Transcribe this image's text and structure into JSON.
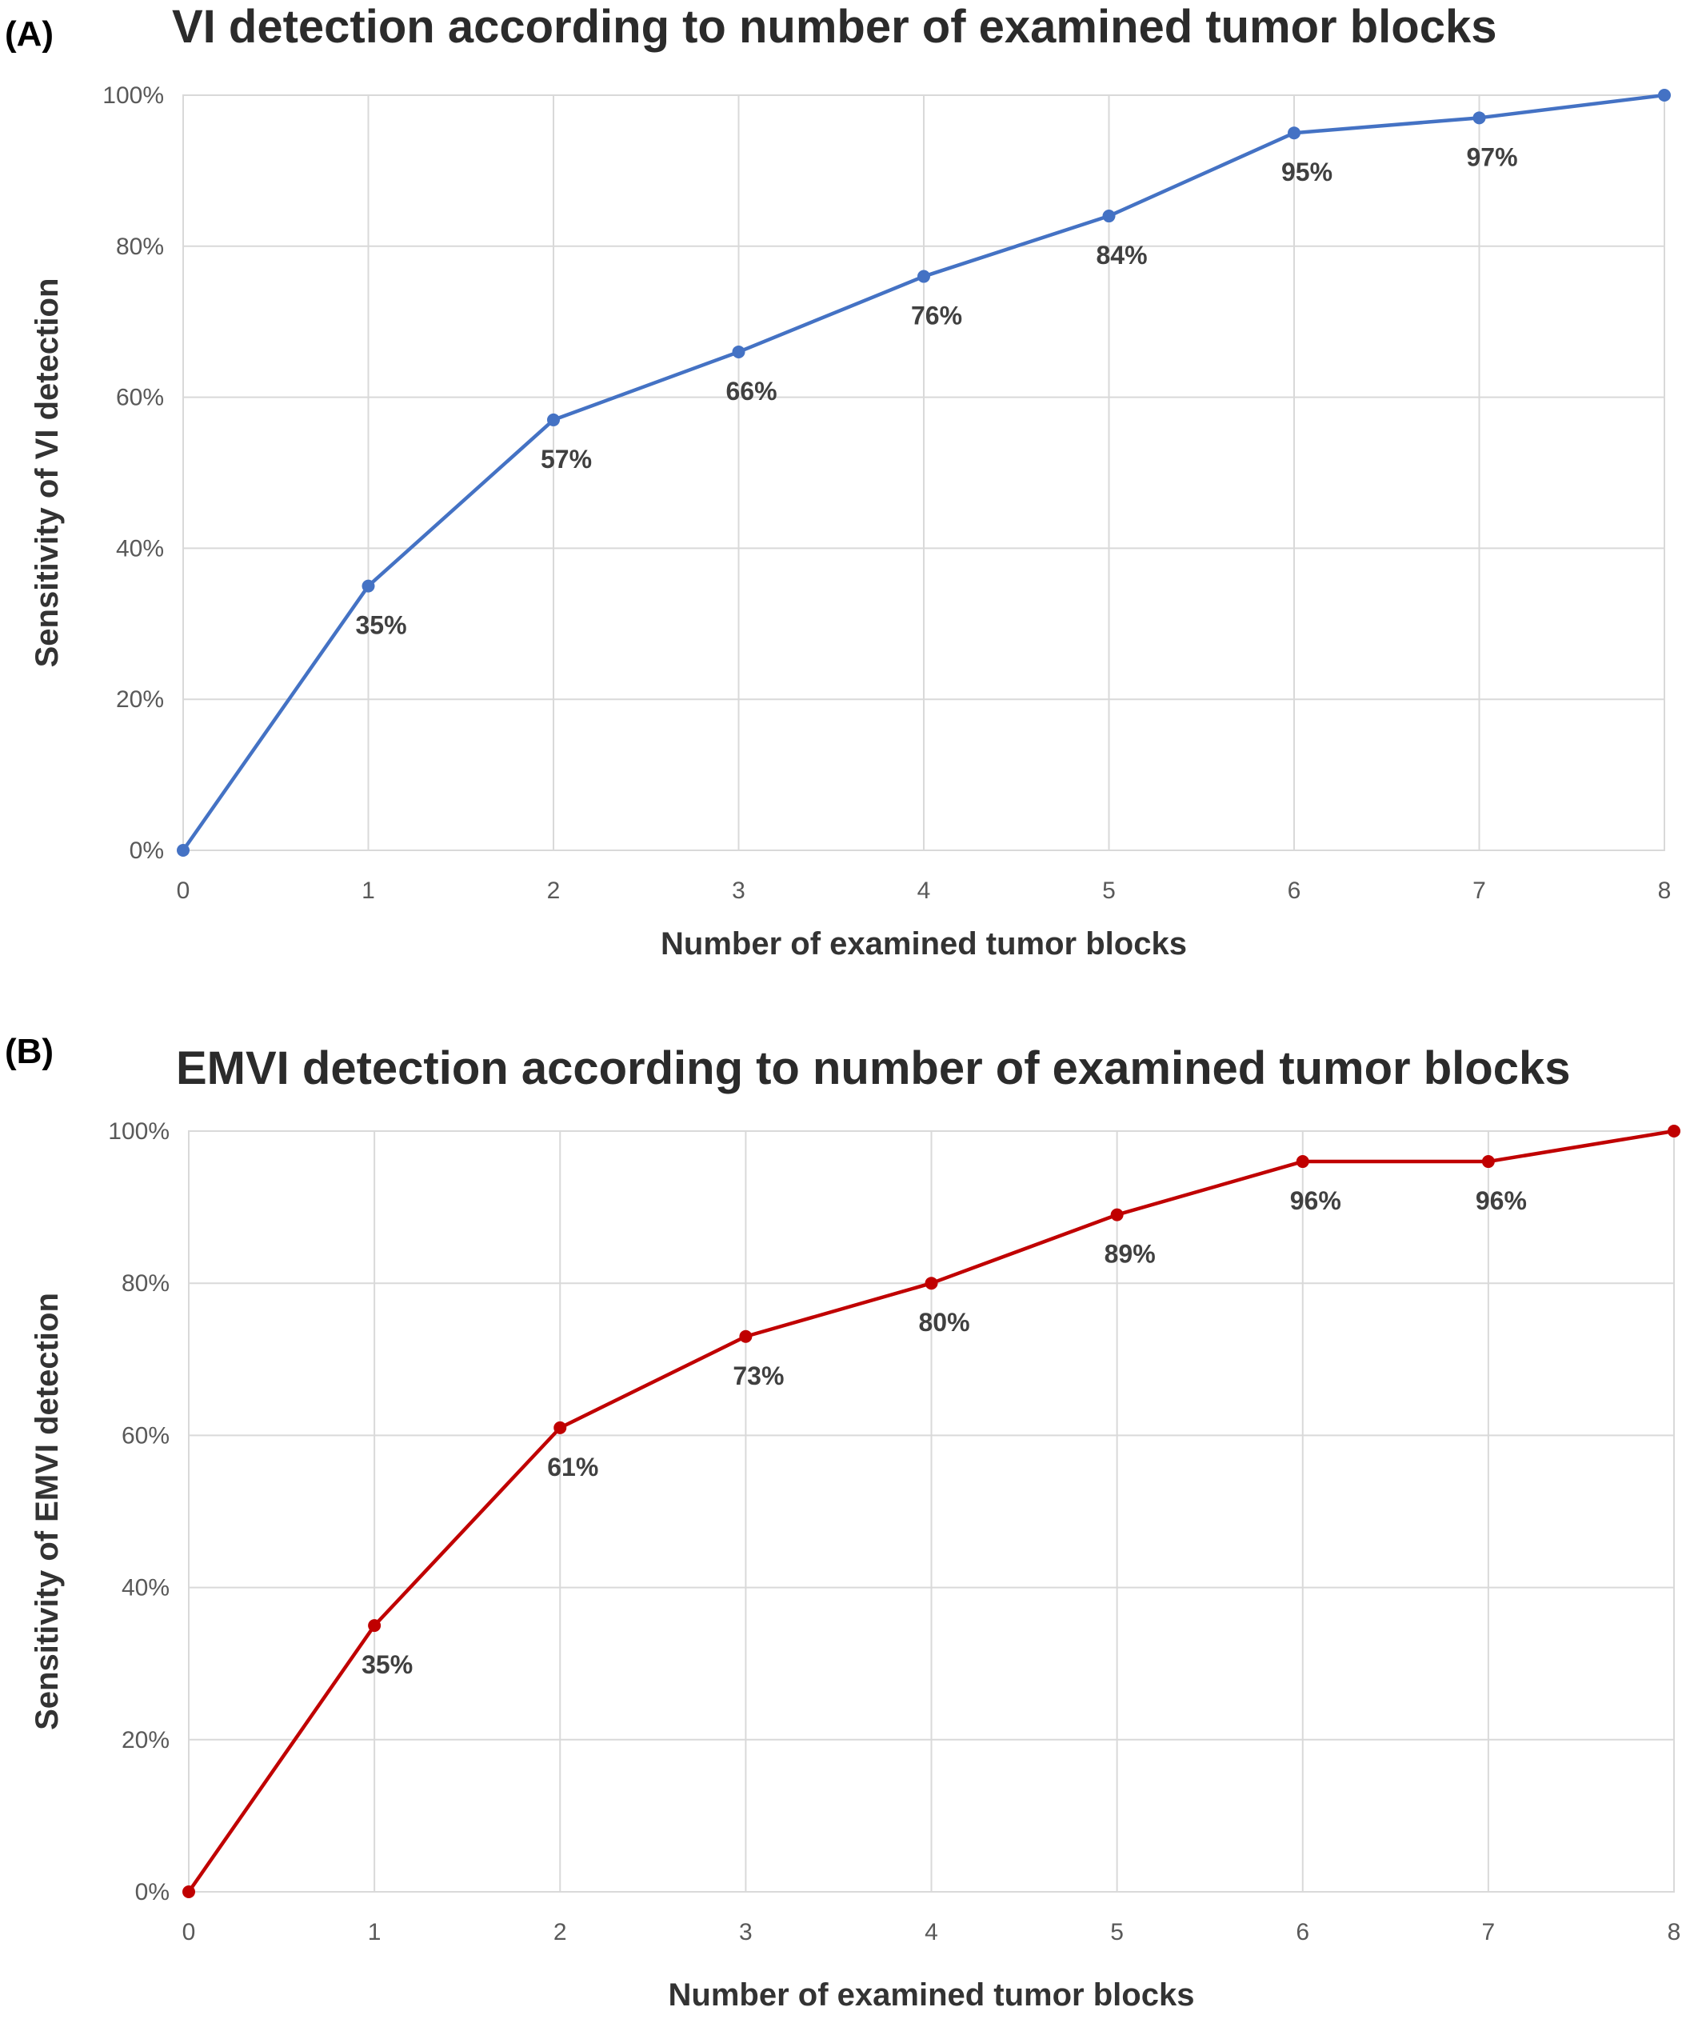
{
  "panels": [
    {
      "letter": "(A)",
      "title": "VI detection according to number of examined tumor blocks"
    },
    {
      "letter": "(B)",
      "title": "EMVI detection according to number of examined tumor blocks"
    }
  ],
  "chart_data": [
    {
      "type": "line",
      "title": "VI detection according to number of examined tumor blocks",
      "xlabel": "Number of examined tumor blocks",
      "ylabel": "Sensitivity of VI detection",
      "x": [
        0,
        1,
        2,
        3,
        4,
        5,
        6,
        7,
        8
      ],
      "xlim": [
        0,
        8
      ],
      "ylim": [
        0,
        100
      ],
      "yticks": [
        "0%",
        "20%",
        "40%",
        "60%",
        "80%",
        "100%"
      ],
      "grid": true,
      "series": [
        {
          "values": [
            0,
            35,
            57,
            66,
            76,
            84,
            95,
            97,
            100
          ],
          "data_labels": [
            "",
            "35%",
            "57%",
            "66%",
            "76%",
            "84%",
            "95%",
            "97%",
            ""
          ],
          "color": "#4472C4"
        }
      ]
    },
    {
      "type": "line",
      "title": "EMVI detection according to number of examined tumor blocks",
      "xlabel": "Number of examined tumor blocks",
      "ylabel": "Sensitivity of EMVI detection",
      "x": [
        0,
        1,
        2,
        3,
        4,
        5,
        6,
        7,
        8
      ],
      "xlim": [
        0,
        8
      ],
      "ylim": [
        0,
        100
      ],
      "yticks": [
        "0%",
        "20%",
        "40%",
        "60%",
        "80%",
        "100%"
      ],
      "grid": true,
      "series": [
        {
          "values": [
            0,
            35,
            61,
            73,
            80,
            89,
            96,
            96,
            100
          ],
          "data_labels": [
            "",
            "35%",
            "61%",
            "73%",
            "80%",
            "89%",
            "96%",
            "96%",
            ""
          ],
          "color": "#C00000"
        }
      ]
    }
  ]
}
